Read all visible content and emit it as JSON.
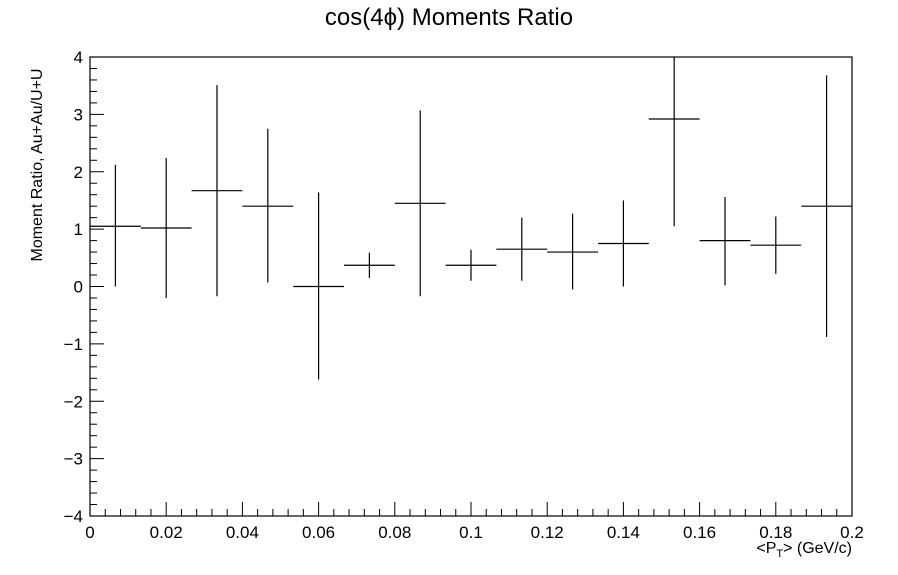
{
  "chart_data": {
    "type": "scatter",
    "title": "cos(4ϕ) Moments Ratio",
    "xlabel_main": "<P",
    "xlabel_sub": "T",
    "xlabel_tail": "> (GeV/c)",
    "ylabel": "Moment Ratio, Au+Au/U+U",
    "xlim": [
      0,
      0.2
    ],
    "ylim": [
      -4,
      4
    ],
    "x_ticks": [
      0,
      0.02,
      0.04,
      0.06,
      0.08,
      0.1,
      0.12,
      0.14,
      0.16,
      0.18,
      0.2
    ],
    "x_tick_labels": [
      "0",
      "0.02",
      "0.04",
      "0.06",
      "0.08",
      "0.1",
      "0.12",
      "0.14",
      "0.16",
      "0.18",
      "0.2"
    ],
    "y_ticks": [
      -4,
      -3,
      -2,
      -1,
      0,
      1,
      2,
      3,
      4
    ],
    "y_tick_labels": [
      "−4",
      "−3",
      "−2",
      "−1",
      "0",
      "1",
      "2",
      "3",
      "4"
    ],
    "grid": false,
    "series": [
      {
        "points": [
          {
            "x": 0.00667,
            "xerr": 0.00667,
            "y": 1.05,
            "yerr_low": 1.05,
            "yerr_high": 1.07
          },
          {
            "x": 0.02,
            "xerr": 0.00667,
            "y": 1.02,
            "yerr_low": 1.22,
            "yerr_high": 1.22
          },
          {
            "x": 0.03333,
            "xerr": 0.00667,
            "y": 1.67,
            "yerr_low": 1.84,
            "yerr_high": 1.84
          },
          {
            "x": 0.04667,
            "xerr": 0.00667,
            "y": 1.4,
            "yerr_low": 1.33,
            "yerr_high": 1.35
          },
          {
            "x": 0.06,
            "xerr": 0.00667,
            "y": 0.0,
            "yerr_low": 1.62,
            "yerr_high": 1.64
          },
          {
            "x": 0.07333,
            "xerr": 0.00667,
            "y": 0.37,
            "yerr_low": 0.22,
            "yerr_high": 0.22
          },
          {
            "x": 0.08667,
            "xerr": 0.00667,
            "y": 1.45,
            "yerr_low": 1.62,
            "yerr_high": 1.62
          },
          {
            "x": 0.1,
            "xerr": 0.00667,
            "y": 0.37,
            "yerr_low": 0.27,
            "yerr_high": 0.27
          },
          {
            "x": 0.11333,
            "xerr": 0.00667,
            "y": 0.65,
            "yerr_low": 0.55,
            "yerr_high": 0.55
          },
          {
            "x": 0.12667,
            "xerr": 0.00667,
            "y": 0.6,
            "yerr_low": 0.65,
            "yerr_high": 0.67
          },
          {
            "x": 0.14,
            "xerr": 0.00667,
            "y": 0.75,
            "yerr_low": 0.75,
            "yerr_high": 0.75
          },
          {
            "x": 0.15333,
            "xerr": 0.00667,
            "y": 2.92,
            "yerr_low": 1.87,
            "yerr_high": 1.08
          },
          {
            "x": 0.16667,
            "xerr": 0.00667,
            "y": 0.8,
            "yerr_low": 0.78,
            "yerr_high": 0.76
          },
          {
            "x": 0.18,
            "xerr": 0.00667,
            "y": 0.72,
            "yerr_low": 0.5,
            "yerr_high": 0.5
          },
          {
            "x": 0.19333,
            "xerr": 0.00667,
            "y": 1.4,
            "yerr_low": 2.28,
            "yerr_high": 2.28
          }
        ]
      }
    ]
  }
}
